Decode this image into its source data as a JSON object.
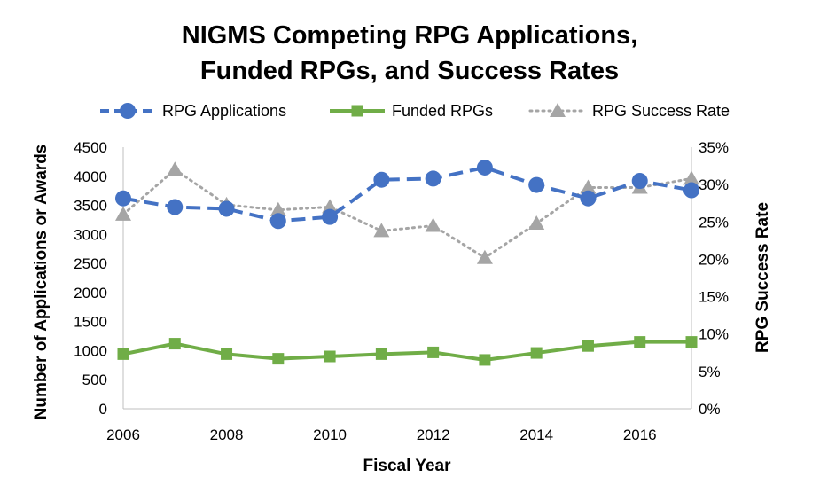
{
  "chart_data": {
    "type": "line",
    "title_lines": [
      "NIGMS Competing RPG Applications,",
      "Funded RPGs, and Success Rates"
    ],
    "xlabel": "Fiscal Year",
    "ylabel": "Number of Applications or Awards",
    "y2label": "RPG Success Rate",
    "x": [
      2006,
      2007,
      2008,
      2009,
      2010,
      2011,
      2012,
      2013,
      2014,
      2015,
      2016,
      2017
    ],
    "x_tick_labels": [
      "2006",
      "2008",
      "2010",
      "2012",
      "2014",
      "2016"
    ],
    "xlim": [
      2006,
      2017
    ],
    "ylim": [
      0,
      4500
    ],
    "y_ticks": [
      "0",
      "500",
      "1000",
      "1500",
      "2000",
      "2500",
      "3000",
      "3500",
      "4000",
      "4500"
    ],
    "y2lim": [
      0,
      35
    ],
    "y2_ticks": [
      "0%",
      "5%",
      "10%",
      "15%",
      "20%",
      "25%",
      "30%",
      "35%"
    ],
    "grid": false,
    "legend_position": "top",
    "series": [
      {
        "name": "RPG Applications",
        "axis": "left",
        "style": "dashed",
        "marker": "circle",
        "color": "#4472C4",
        "values": [
          3620,
          3470,
          3440,
          3230,
          3300,
          3940,
          3960,
          4150,
          3850,
          3620,
          3920,
          3760
        ]
      },
      {
        "name": "Funded RPGs",
        "axis": "left",
        "style": "solid",
        "marker": "square",
        "color": "#70AD47",
        "values": [
          940,
          1120,
          940,
          860,
          900,
          940,
          970,
          840,
          960,
          1080,
          1150,
          1150
        ]
      },
      {
        "name": "RPG Success Rate",
        "axis": "right",
        "style": "dotted",
        "marker": "triangle",
        "color": "#A5A5A5",
        "values": [
          26,
          32,
          27.3,
          26.6,
          27,
          23.8,
          24.5,
          20.2,
          24.8,
          29.6,
          29.6,
          30.8
        ]
      }
    ]
  }
}
